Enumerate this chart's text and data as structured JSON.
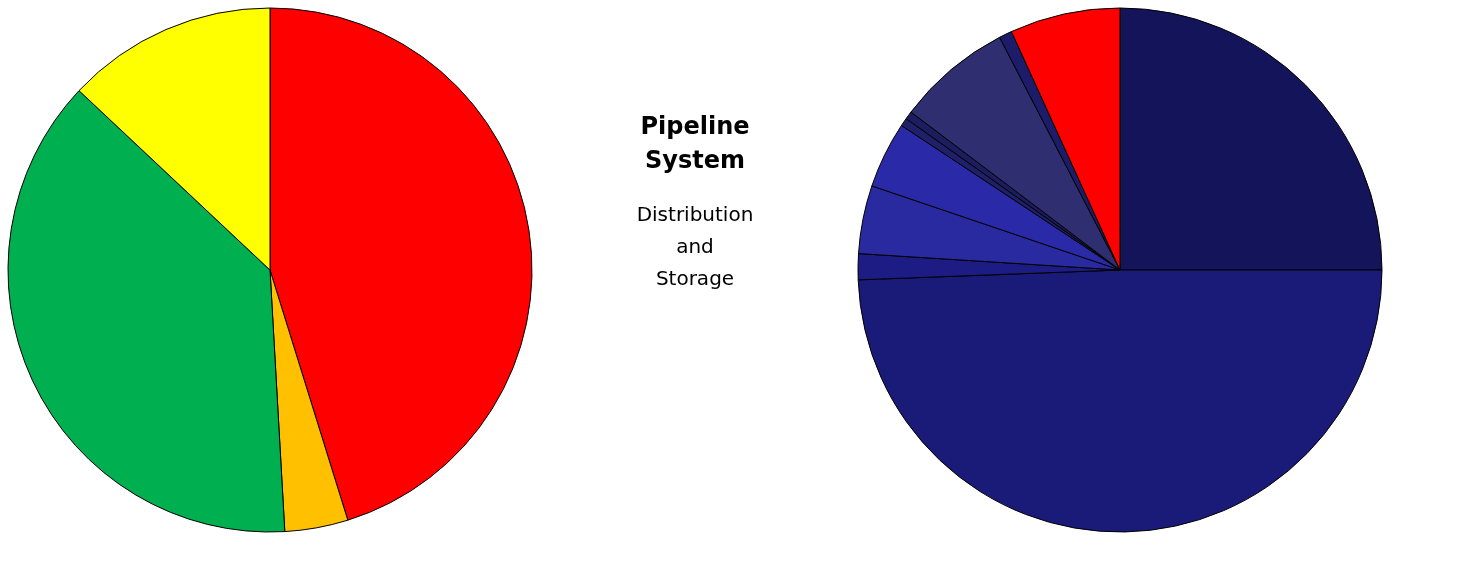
{
  "chart_data": [
    {
      "type": "pie",
      "categories": [
        null,
        null,
        null,
        null
      ],
      "values": [
        45.2,
        3.9,
        37.9,
        13.0
      ],
      "colors": [
        "#ff0000",
        "#ffc000",
        "#00b050",
        "#ffff00"
      ],
      "legend": false
    },
    {
      "type": "other",
      "annotations": [
        "Pipeline System",
        "Distribution and Storage"
      ]
    },
    {
      "type": "pie",
      "categories": [
        null,
        null,
        null,
        null,
        null,
        null,
        null,
        null,
        null,
        null
      ],
      "values": [
        25.0,
        49.4,
        1.6,
        4.2,
        4.1,
        0.5,
        0.5,
        7.1,
        0.8,
        6.8
      ],
      "colors": [
        "#14145a",
        "#1a1a78",
        "#1c1c84",
        "#2a2aa0",
        "#2a2aa8",
        "#20206a",
        "#1c1c60",
        "#2e2e70",
        "#1c1c6a",
        "#ff0000"
      ],
      "legend": false
    }
  ]
}
